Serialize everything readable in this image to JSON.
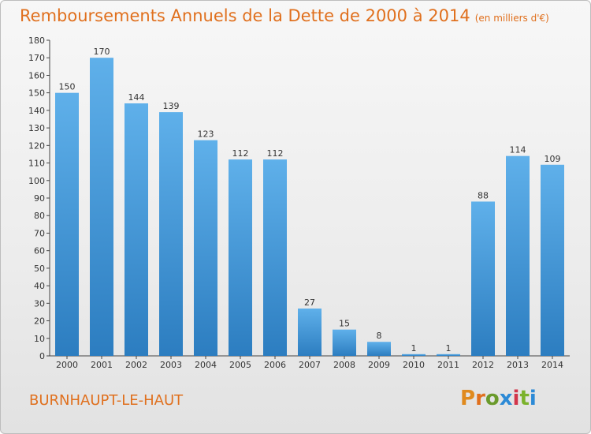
{
  "title": "Remboursements Annuels de la Dette de 2000 à 2014",
  "unit": "(en milliers d'€)",
  "commune": "BURNHAUPT-LE-HAUT",
  "logo": {
    "letters": [
      "P",
      "r",
      "o",
      "x",
      "i",
      "t",
      "i"
    ],
    "colors": [
      "#e08a1e",
      "#e0701e",
      "#6a9a2b",
      "#2c8ad6",
      "#d2354a",
      "#7bb22c",
      "#2c8ad6"
    ]
  },
  "colors": {
    "bar_top": "#5fb0ea",
    "bar_bottom": "#2c7dc0",
    "title": "#e0701e"
  },
  "chart_data": {
    "type": "bar",
    "categories": [
      "2000",
      "2001",
      "2002",
      "2003",
      "2004",
      "2005",
      "2006",
      "2007",
      "2008",
      "2009",
      "2010",
      "2011",
      "2012",
      "2013",
      "2014"
    ],
    "values": [
      150,
      170,
      144,
      139,
      123,
      112,
      112,
      27,
      15,
      8,
      1,
      1,
      88,
      114,
      109
    ],
    "data_labels": [
      "150",
      "170",
      "144",
      "139",
      "123",
      "112",
      "112",
      "27",
      "15",
      "8",
      "1",
      "1",
      "88",
      "114",
      "109"
    ],
    "title": "Remboursements Annuels de la Dette de 2000 à 2014",
    "xlabel": "",
    "ylabel": "",
    "ylim": [
      0,
      180
    ],
    "yticks": [
      0,
      10,
      20,
      30,
      40,
      50,
      60,
      70,
      80,
      90,
      100,
      110,
      120,
      130,
      140,
      150,
      160,
      170,
      180
    ],
    "grid": false
  }
}
